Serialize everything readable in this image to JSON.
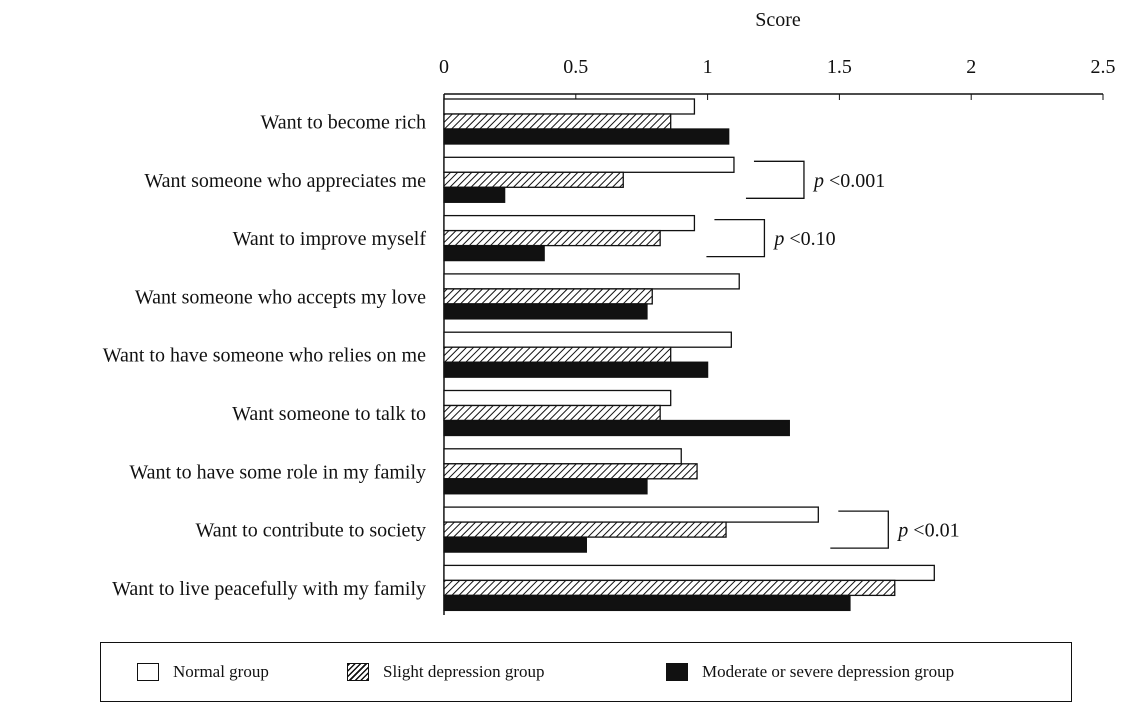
{
  "chart_data": {
    "type": "bar",
    "orientation": "horizontal",
    "title": "",
    "xlabel": "Score",
    "ylabel": "",
    "xlim": [
      0,
      2.5
    ],
    "xticks": [
      "0",
      "0.5",
      "1",
      "1.5",
      "2",
      "2.5"
    ],
    "x_axis_position": "top",
    "grid": false,
    "categories": [
      "Want to become rich",
      "Want someone who appreciates me",
      "Want to improve myself",
      "Want someone who accepts my love",
      "Want to have someone who relies on me",
      "Want someone to talk to",
      "Want to have some role in my family",
      "Want to contribute to society",
      "Want to live peacefully with my family"
    ],
    "series": [
      {
        "name": "Normal group",
        "fill": "#ffffff",
        "values": [
          0.95,
          1.1,
          0.95,
          1.12,
          1.09,
          0.86,
          0.9,
          1.42,
          1.86
        ]
      },
      {
        "name": "Slight depression group",
        "fill": "hatched",
        "values": [
          0.86,
          0.68,
          0.82,
          0.79,
          0.86,
          0.82,
          0.96,
          1.07,
          1.71
        ]
      },
      {
        "name": "Moderate or severe depression group",
        "fill": "#111111",
        "values": [
          1.08,
          0.23,
          0.38,
          0.77,
          1.0,
          1.31,
          0.77,
          0.54,
          1.54
        ]
      }
    ],
    "annotations": [
      {
        "text": "p < 0.001",
        "category_index": 1
      },
      {
        "text": "p < 0.10",
        "category_index": 2
      },
      {
        "text": "p < 0.01",
        "category_index": 7
      }
    ],
    "legend_position": "bottom"
  }
}
